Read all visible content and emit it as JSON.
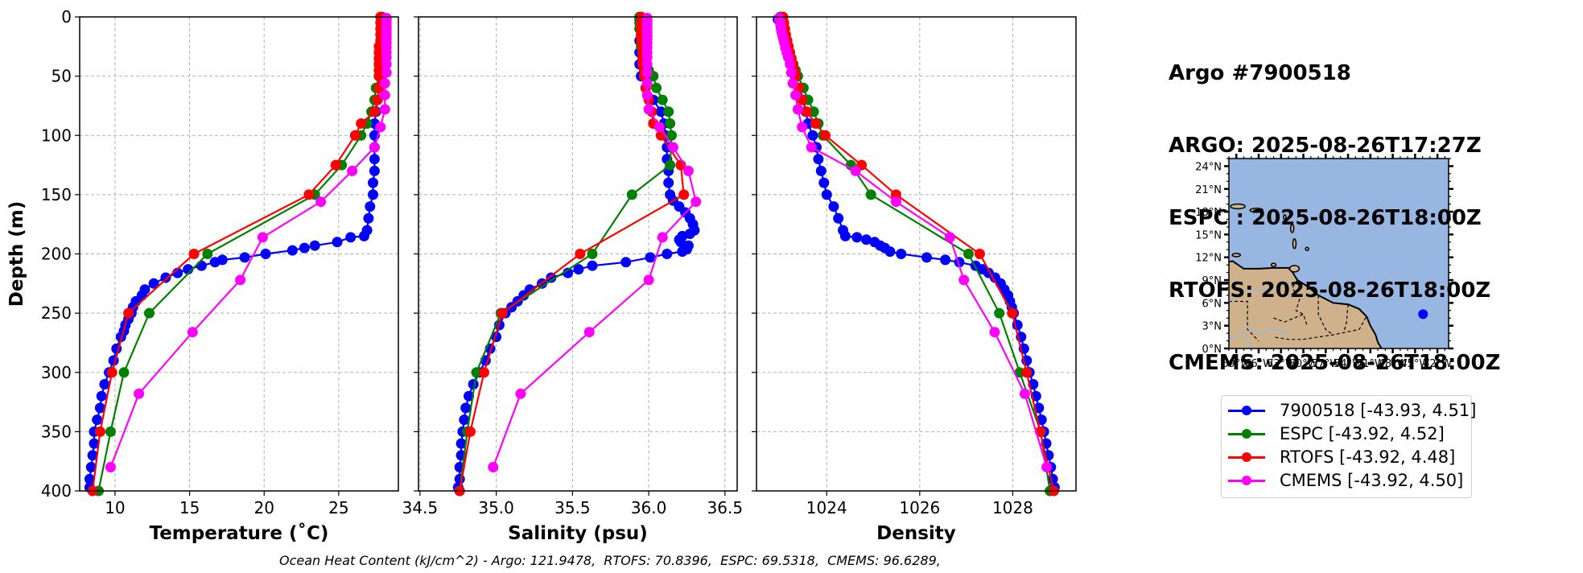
{
  "info": {
    "lines": [
      "Argo #7900518",
      "ARGO: 2025-08-26T17:27Z",
      "ESPC : 2025-08-26T18:00Z",
      "RTOFS: 2025-08-26T18:00Z",
      "CMEMS: 2025-08-26T18:00Z"
    ]
  },
  "caption": "Ocean Heat Content (kJ/cm^2) - Argo: 121.9478,  RTOFS: 70.8396,  ESPC: 69.5318,  CMEMS: 96.6289,",
  "ohc": {
    "Argo": 121.9478,
    "RTOFS": 70.8396,
    "ESPC": 69.5318,
    "CMEMS": 96.6289,
    "units": "kJ/cm^2"
  },
  "legend": {
    "items": [
      {
        "label": "7900518 [-43.93, 4.51]",
        "color": "#0000ff"
      },
      {
        "label": "ESPC [-43.92, 4.52]",
        "color": "#008000"
      },
      {
        "label": "RTOFS [-43.92, 4.48]",
        "color": "#ff0000"
      },
      {
        "label": "CMEMS [-43.92, 4.50]",
        "color": "#ff00ff"
      }
    ],
    "placement": "right"
  },
  "map": {
    "lat_ticks": [
      "0°N",
      "3°N",
      "6°N",
      "9°N",
      "12°N",
      "15°N",
      "18°N",
      "21°N",
      "24°N"
    ],
    "lon_ticks": [
      "69°W",
      "66°W",
      "63°W",
      "60°W",
      "57°W",
      "54°W",
      "51°W",
      "48°W",
      "45°W",
      "42°W"
    ],
    "extent": {
      "lon": [
        -70,
        -40.5
      ],
      "lat": [
        0,
        25
      ]
    },
    "float_position": {
      "lon": -43.93,
      "lat": 4.51
    },
    "ocean_color": "#97b6e1",
    "land_color": "#cfb18b",
    "marker_color": "#0000ff"
  },
  "chart_data": [
    {
      "type": "line",
      "title": "",
      "xlabel": "Temperature (˚C)",
      "ylabel": "Depth (m)",
      "xlim": [
        7.63,
        29.0
      ],
      "ylim": [
        400,
        0
      ],
      "xticks": [
        "10",
        "15",
        "20",
        "25"
      ],
      "xtick_values": [
        10,
        15,
        20,
        25
      ],
      "yticks": [
        "0",
        "50",
        "100",
        "150",
        "200",
        "250",
        "300",
        "350",
        "400"
      ],
      "ytick_values": [
        0,
        50,
        100,
        150,
        200,
        250,
        300,
        350,
        400
      ],
      "grid": true,
      "series": [
        {
          "name": "7900518",
          "color": "#0000ff",
          "depth": [
            2,
            10,
            20,
            30,
            40,
            50,
            60,
            70,
            80,
            90,
            100,
            110,
            120,
            130,
            140,
            150,
            160,
            170,
            180,
            185,
            186,
            190,
            193,
            195,
            197,
            200,
            203,
            205,
            207,
            210,
            213,
            216,
            220,
            225,
            230,
            235,
            240,
            245,
            250,
            255,
            260,
            265,
            270,
            280,
            290,
            300,
            310,
            320,
            330,
            340,
            350,
            360,
            370,
            380,
            390,
            397
          ],
          "values": [
            28.0,
            28.0,
            27.9,
            27.9,
            27.8,
            27.8,
            27.7,
            27.6,
            27.5,
            27.4,
            27.4,
            27.4,
            27.4,
            27.4,
            27.3,
            27.3,
            27.1,
            27.0,
            26.9,
            26.7,
            25.8,
            24.9,
            23.4,
            22.7,
            21.9,
            20.1,
            18.7,
            17.2,
            16.7,
            15.8,
            14.9,
            14.2,
            13.4,
            12.6,
            12.0,
            11.8,
            11.4,
            11.2,
            11.1,
            10.9,
            10.7,
            10.6,
            10.4,
            10.1,
            9.9,
            9.6,
            9.3,
            9.1,
            9.0,
            8.8,
            8.6,
            8.6,
            8.5,
            8.4,
            8.3,
            8.3
          ]
        },
        {
          "name": "ESPC",
          "color": "#008000",
          "depth": [
            0,
            5,
            10,
            15,
            20,
            25,
            30,
            35,
            40,
            45,
            50,
            60,
            70,
            80,
            90,
            100,
            125,
            150,
            200,
            250,
            300,
            350,
            400
          ],
          "values": [
            27.9,
            27.9,
            27.9,
            27.9,
            27.9,
            27.8,
            27.8,
            27.8,
            27.7,
            27.7,
            27.7,
            27.5,
            27.4,
            27.2,
            26.9,
            26.5,
            25.2,
            23.4,
            16.2,
            12.3,
            10.6,
            9.7,
            8.9
          ]
        },
        {
          "name": "RTOFS",
          "color": "#ff0000",
          "depth": [
            0,
            5,
            10,
            15,
            20,
            25,
            30,
            35,
            40,
            45,
            50,
            60,
            70,
            80,
            90,
            100,
            125,
            150,
            200,
            250,
            300,
            350,
            400
          ],
          "values": [
            27.8,
            27.8,
            27.8,
            27.8,
            27.8,
            27.7,
            27.7,
            27.7,
            27.7,
            27.7,
            27.7,
            27.7,
            27.6,
            27.4,
            26.5,
            26.1,
            24.8,
            23.0,
            15.3,
            10.9,
            9.8,
            9.0,
            8.5
          ]
        },
        {
          "name": "CMEMS",
          "color": "#ff00ff",
          "depth": [
            1,
            3,
            5,
            8,
            10,
            13,
            16,
            19,
            22,
            26,
            30,
            34,
            40,
            47,
            56,
            66,
            78,
            93,
            110,
            130,
            156,
            186,
            222,
            266,
            318,
            380
          ],
          "values": [
            28.2,
            28.2,
            28.2,
            28.2,
            28.2,
            28.2,
            28.2,
            28.2,
            28.2,
            28.2,
            28.2,
            28.2,
            28.2,
            28.2,
            28.1,
            28.1,
            28.1,
            27.8,
            27.4,
            25.9,
            23.8,
            19.9,
            18.4,
            15.2,
            11.6,
            9.7
          ]
        }
      ]
    },
    {
      "type": "line",
      "title": "",
      "xlabel": "Salinity (psu)",
      "ylabel": "",
      "xlim": [
        34.49,
        36.58
      ],
      "ylim": [
        400,
        0
      ],
      "xticks": [
        "34.5",
        "35.0",
        "35.5",
        "36.0",
        "36.5"
      ],
      "xtick_values": [
        34.5,
        35.0,
        35.5,
        36.0,
        36.5
      ],
      "grid": true,
      "series": [
        {
          "name": "7900518",
          "color": "#0000ff",
          "depth": [
            2,
            10,
            20,
            30,
            40,
            50,
            60,
            70,
            80,
            90,
            100,
            110,
            120,
            130,
            140,
            150,
            155,
            160,
            165,
            170,
            175,
            180,
            183,
            185,
            188,
            190,
            193,
            196,
            198,
            200,
            203,
            207,
            210,
            213,
            216,
            220,
            225,
            230,
            235,
            240,
            245,
            250,
            260,
            270,
            280,
            290,
            300,
            310,
            320,
            330,
            340,
            350,
            360,
            370,
            380,
            390,
            397
          ],
          "values": [
            35.94,
            35.94,
            35.94,
            35.94,
            35.94,
            35.95,
            35.98,
            36.03,
            36.08,
            36.1,
            36.11,
            36.12,
            36.12,
            36.13,
            36.13,
            36.14,
            36.16,
            36.2,
            36.24,
            36.27,
            36.29,
            36.3,
            36.27,
            36.22,
            36.2,
            36.21,
            36.26,
            36.25,
            36.22,
            36.12,
            36.01,
            35.85,
            35.63,
            35.54,
            35.47,
            35.36,
            35.3,
            35.22,
            35.18,
            35.14,
            35.1,
            35.06,
            35.02,
            35.0,
            34.96,
            34.93,
            34.89,
            34.85,
            34.82,
            34.8,
            34.79,
            34.78,
            34.77,
            34.77,
            34.76,
            34.76,
            34.75
          ]
        },
        {
          "name": "ESPC",
          "color": "#008000",
          "depth": [
            0,
            5,
            10,
            15,
            20,
            25,
            30,
            35,
            40,
            45,
            50,
            60,
            70,
            80,
            90,
            100,
            125,
            150,
            200,
            250,
            300,
            350,
            400
          ],
          "values": [
            35.94,
            35.94,
            35.94,
            35.95,
            35.95,
            35.95,
            35.96,
            35.97,
            35.98,
            36.0,
            36.03,
            36.05,
            36.09,
            36.13,
            36.14,
            36.15,
            36.14,
            35.89,
            35.63,
            35.03,
            34.87,
            34.81,
            34.76
          ]
        },
        {
          "name": "RTOFS",
          "color": "#ff0000",
          "depth": [
            0,
            5,
            10,
            15,
            20,
            25,
            30,
            35,
            40,
            45,
            50,
            60,
            70,
            80,
            90,
            100,
            125,
            150,
            200,
            250,
            300,
            350,
            400
          ],
          "values": [
            35.95,
            35.95,
            35.95,
            35.95,
            35.95,
            35.96,
            35.96,
            35.96,
            35.96,
            35.97,
            35.97,
            35.98,
            36.0,
            36.02,
            36.03,
            36.08,
            36.21,
            36.23,
            35.55,
            35.04,
            34.92,
            34.83,
            34.76
          ]
        },
        {
          "name": "CMEMS",
          "color": "#ff00ff",
          "depth": [
            1,
            3,
            5,
            8,
            10,
            13,
            16,
            19,
            22,
            26,
            30,
            34,
            40,
            47,
            56,
            66,
            78,
            93,
            110,
            130,
            156,
            186,
            222,
            266,
            318,
            380
          ],
          "values": [
            35.99,
            35.99,
            35.99,
            35.99,
            35.99,
            35.99,
            35.99,
            35.99,
            35.99,
            35.99,
            35.99,
            35.99,
            35.99,
            35.99,
            35.99,
            35.99,
            36.0,
            36.07,
            36.16,
            36.26,
            36.31,
            36.09,
            36.0,
            35.61,
            35.16,
            34.98
          ]
        }
      ]
    },
    {
      "type": "line",
      "title": "",
      "xlabel": "Density",
      "ylabel": "",
      "xlim": [
        1022.49,
        1029.36
      ],
      "ylim": [
        400,
        0
      ],
      "xticks": [
        "1024",
        "1026",
        "1028"
      ],
      "xtick_values": [
        1024,
        1026,
        1028
      ],
      "grid": true,
      "series": [
        {
          "name": "7900518",
          "color": "#0000ff",
          "depth": [
            2,
            5,
            10,
            20,
            30,
            40,
            50,
            60,
            70,
            80,
            90,
            100,
            110,
            120,
            130,
            140,
            150,
            160,
            170,
            180,
            185,
            186,
            188,
            190,
            193,
            195,
            198,
            200,
            203,
            205,
            207,
            210,
            213,
            216,
            220,
            225,
            230,
            235,
            240,
            245,
            250,
            260,
            270,
            280,
            290,
            300,
            310,
            320,
            330,
            340,
            350,
            360,
            370,
            380,
            390,
            397
          ],
          "values": [
            1022.95,
            1023.0,
            1023.05,
            1023.15,
            1023.2,
            1023.25,
            1023.32,
            1023.4,
            1023.5,
            1023.55,
            1023.6,
            1023.7,
            1023.78,
            1023.82,
            1023.88,
            1023.94,
            1024.0,
            1024.15,
            1024.25,
            1024.35,
            1024.4,
            1024.65,
            1024.85,
            1025.03,
            1025.15,
            1025.25,
            1025.36,
            1025.6,
            1026.15,
            1026.55,
            1026.85,
            1027.2,
            1027.35,
            1027.48,
            1027.62,
            1027.74,
            1027.82,
            1027.9,
            1027.94,
            1027.98,
            1028.02,
            1028.1,
            1028.18,
            1028.24,
            1028.3,
            1028.36,
            1028.44,
            1028.5,
            1028.56,
            1028.62,
            1028.67,
            1028.72,
            1028.77,
            1028.82,
            1028.86,
            1028.9
          ]
        },
        {
          "name": "ESPC",
          "color": "#008000",
          "depth": [
            0,
            5,
            10,
            15,
            20,
            25,
            30,
            35,
            40,
            45,
            50,
            60,
            70,
            80,
            90,
            100,
            125,
            150,
            200,
            250,
            300,
            350,
            400
          ],
          "values": [
            1023.0,
            1023.03,
            1023.06,
            1023.09,
            1023.12,
            1023.16,
            1023.2,
            1023.24,
            1023.28,
            1023.33,
            1023.38,
            1023.5,
            1023.6,
            1023.72,
            1023.82,
            1023.92,
            1024.52,
            1024.95,
            1027.05,
            1027.71,
            1028.15,
            1028.6,
            1028.8
          ]
        },
        {
          "name": "RTOFS",
          "color": "#ff0000",
          "depth": [
            0,
            5,
            10,
            15,
            20,
            25,
            30,
            35,
            40,
            45,
            50,
            60,
            70,
            80,
            90,
            100,
            125,
            150,
            200,
            250,
            300,
            350,
            400
          ],
          "values": [
            1023.06,
            1023.08,
            1023.1,
            1023.12,
            1023.15,
            1023.18,
            1023.21,
            1023.24,
            1023.27,
            1023.3,
            1023.33,
            1023.4,
            1023.47,
            1023.57,
            1023.76,
            1023.97,
            1024.75,
            1025.49,
            1027.29,
            1027.99,
            1028.3,
            1028.59,
            1028.88
          ]
        },
        {
          "name": "CMEMS",
          "color": "#ff00ff",
          "depth": [
            1,
            3,
            5,
            8,
            10,
            13,
            16,
            19,
            22,
            26,
            30,
            34,
            40,
            47,
            56,
            66,
            78,
            93,
            110,
            130,
            156,
            186,
            222,
            266,
            318,
            380
          ],
          "values": [
            1022.98,
            1022.99,
            1023.0,
            1023.01,
            1023.02,
            1023.03,
            1023.05,
            1023.07,
            1023.09,
            1023.11,
            1023.14,
            1023.17,
            1023.21,
            1023.24,
            1023.27,
            1023.33,
            1023.38,
            1023.47,
            1023.67,
            1024.62,
            1025.49,
            1026.65,
            1026.95,
            1027.61,
            1028.26,
            1028.73
          ]
        }
      ]
    }
  ]
}
